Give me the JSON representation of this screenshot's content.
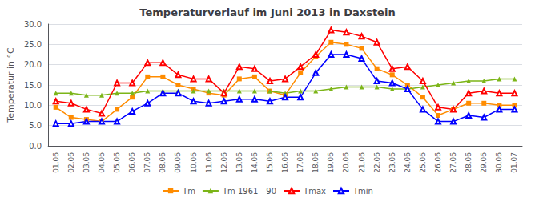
{
  "chart_data": {
    "type": "line",
    "title": "Temperaturverlauf im Juni 2013 in Daxstein",
    "y_label": "Temperatur in °C",
    "categories": [
      "01.06",
      "02.06",
      "03.06",
      "04.06",
      "05.06",
      "06.06",
      "07.06",
      "08.06",
      "09.06",
      "10.06",
      "11.06",
      "12.06",
      "13.06",
      "14.06",
      "15.06",
      "16.06",
      "17.06",
      "18.06",
      "19.06",
      "20.06",
      "21.06",
      "22.06",
      "23.06",
      "24.06",
      "25.06",
      "26.06",
      "27.06",
      "28.06",
      "29.06",
      "30.06",
      "01.07"
    ],
    "series": [
      {
        "name": "Tm",
        "color": "#FF8C00",
        "marker": "square",
        "values": [
          9.5,
          7.0,
          6.5,
          6.0,
          9.0,
          12.0,
          17.0,
          17.0,
          15.0,
          14.0,
          13.0,
          12.5,
          16.5,
          17.0,
          13.5,
          12.5,
          18.0,
          22.0,
          25.5,
          25.0,
          24.0,
          19.0,
          17.5,
          15.0,
          12.0,
          7.5,
          9.0,
          10.5,
          10.5,
          10.0,
          10.0
        ]
      },
      {
        "name": "Tm 1961 - 90",
        "color": "#7CB518",
        "marker": "triangle",
        "values": [
          13.0,
          13.0,
          12.5,
          12.5,
          13.0,
          13.0,
          13.5,
          13.5,
          13.5,
          13.5,
          13.5,
          13.5,
          13.5,
          13.5,
          13.5,
          13.0,
          13.5,
          13.5,
          14.0,
          14.5,
          14.5,
          14.5,
          14.0,
          14.0,
          14.5,
          15.0,
          15.5,
          16.0,
          16.0,
          16.5,
          16.5
        ]
      },
      {
        "name": "Tmax",
        "color": "#FF0000",
        "marker": "open_triangle",
        "values": [
          11.0,
          10.5,
          9.0,
          8.0,
          15.5,
          15.5,
          20.5,
          20.5,
          17.5,
          16.5,
          16.5,
          13.0,
          19.5,
          19.0,
          16.0,
          16.5,
          19.5,
          22.5,
          28.5,
          28.0,
          27.0,
          25.5,
          19.0,
          19.5,
          16.0,
          9.5,
          9.0,
          13.0,
          13.5,
          13.0,
          13.0
        ]
      },
      {
        "name": "Tmin",
        "color": "#0000FF",
        "marker": "open_triangle",
        "values": [
          5.5,
          5.5,
          6.0,
          6.0,
          6.0,
          8.5,
          10.5,
          13.0,
          13.0,
          11.0,
          10.5,
          11.0,
          11.5,
          11.5,
          11.0,
          12.0,
          12.0,
          18.0,
          22.5,
          22.5,
          21.5,
          16.0,
          15.5,
          14.0,
          9.0,
          6.0,
          6.0,
          7.5,
          7.0,
          9.0,
          9.0
        ]
      }
    ],
    "ylim": [
      0.0,
      30.0
    ],
    "yticks": [
      {
        "value": 0,
        "label": "0.0"
      },
      {
        "value": 5,
        "label": "5.0"
      },
      {
        "value": 10,
        "label": "10.0"
      },
      {
        "value": 15,
        "label": "15.0"
      },
      {
        "value": 20,
        "label": "20.0"
      },
      {
        "value": 25,
        "label": "25.0"
      },
      {
        "value": 30,
        "label": "30.0"
      }
    ],
    "grid": true,
    "legend": "bottom"
  }
}
